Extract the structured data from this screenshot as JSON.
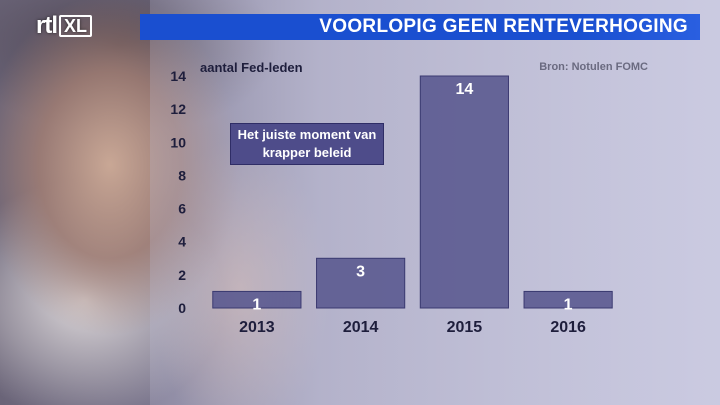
{
  "logo": {
    "brand": "rtl",
    "channel": "XL"
  },
  "header": {
    "title": "VOORLOPIG GEEN RENTEVERHOGING"
  },
  "source": "Bron: Notulen FOMC",
  "annotation": "Het juiste moment van krapper beleid",
  "colors": {
    "title_bar": "#1a4fd0",
    "bar_fill": "#5b5a90",
    "bar_stroke": "#3a3970",
    "note_bg": "#4e4c8a",
    "axis_text": "#1e1e3c"
  },
  "chart_data": {
    "type": "bar",
    "title": "VOORLOPIG GEEN RENTEVERHOGING",
    "ylabel": "aantal Fed-leden",
    "xlabel": "",
    "categories": [
      "2013",
      "2014",
      "2015",
      "2016"
    ],
    "values": [
      1,
      3,
      14,
      1
    ],
    "data_labels": [
      "1",
      "3",
      "14",
      "1"
    ],
    "ylim": [
      0,
      14
    ],
    "yticks": [
      0,
      2,
      4,
      6,
      8,
      10,
      12,
      14
    ],
    "grid": false,
    "legend": "none"
  }
}
